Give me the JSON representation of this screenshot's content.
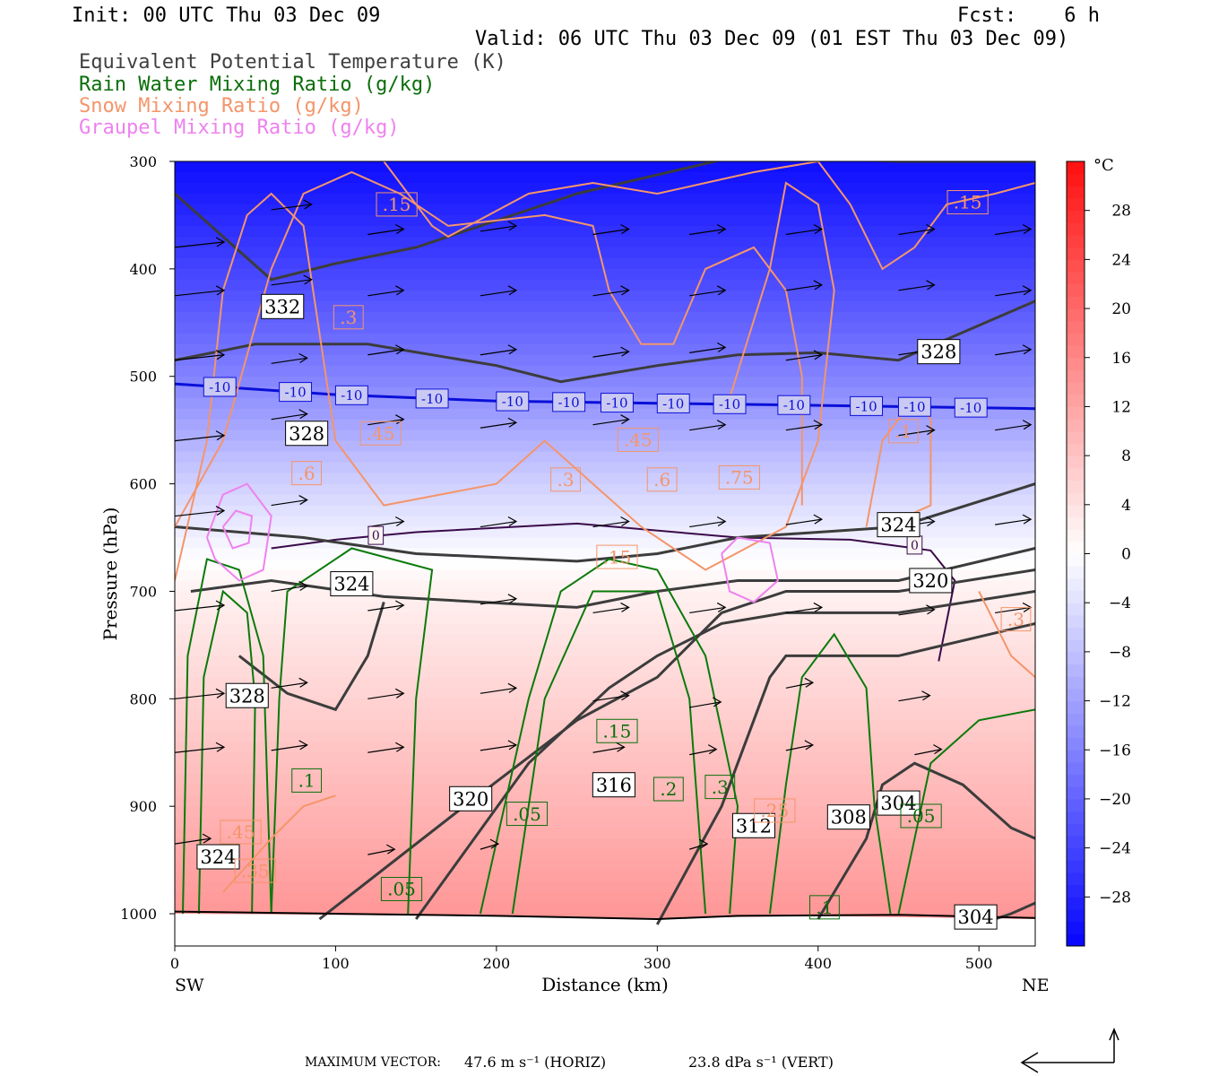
{
  "header": {
    "init": "Init: 00 UTC Thu 03 Dec 09",
    "fcst": "Fcst:    6 h",
    "valid": "Valid: 06 UTC Thu 03 Dec 09 (01 EST Thu 03 Dec 09)"
  },
  "legend": [
    {
      "label": "Equivalent Potential Temperature (K)",
      "color": "#404040"
    },
    {
      "label": "Rain Water Mixing Ratio (g/kg)",
      "color": "#0a6e0a"
    },
    {
      "label": "Snow Mixing Ratio (g/kg)",
      "color": "#f4956a"
    },
    {
      "label": "Graupel Mixing Ratio (g/kg)",
      "color": "#ee82ee"
    }
  ],
  "footer": {
    "max_vector_label": "MAXIMUM VECTOR:",
    "horiz": "47.6 m s⁻¹ (HORIZ)",
    "vert": "23.8 dPa s⁻¹ (VERT)"
  },
  "chart_data": {
    "type": "heatmap",
    "xlabel": "Distance (km)",
    "ylabel": "Pressure (hPa)",
    "x_ticks": [
      0,
      100,
      200,
      300,
      400,
      500
    ],
    "y_ticks": [
      300,
      400,
      500,
      600,
      700,
      800,
      900,
      1000
    ],
    "xlim": [
      0,
      535
    ],
    "ylim": [
      1030,
      300
    ],
    "x_end_labels": {
      "left": "SW",
      "right": "NE"
    },
    "colorbar": {
      "unit": "°C",
      "ticks": [
        28,
        24,
        20,
        16,
        12,
        8,
        4,
        0,
        -4,
        -8,
        -12,
        -16,
        -20,
        -24,
        -28
      ],
      "range": [
        -32,
        32
      ]
    },
    "temperature_profile": [
      {
        "p": 300,
        "t": -31
      },
      {
        "p": 400,
        "t": -24
      },
      {
        "p": 500,
        "t": -16
      },
      {
        "p": 600,
        "t": -6
      },
      {
        "p": 660,
        "t": -1
      },
      {
        "p": 700,
        "t": 2
      },
      {
        "p": 800,
        "t": 6
      },
      {
        "p": 900,
        "t": 10
      },
      {
        "p": 1000,
        "t": 14
      }
    ],
    "isotherm_minus10": {
      "label": "-10",
      "points": [
        [
          0,
          507
        ],
        [
          100,
          517
        ],
        [
          200,
          523
        ],
        [
          300,
          525
        ],
        [
          400,
          527
        ],
        [
          535,
          530
        ]
      ],
      "label_x": [
        28,
        75,
        110,
        160,
        210,
        245,
        275,
        310,
        345,
        385,
        430,
        460,
        495
      ]
    },
    "freezing_level": {
      "label": "0",
      "points": [
        [
          60,
          660
        ],
        [
          100,
          652
        ],
        [
          150,
          645
        ],
        [
          250,
          637
        ],
        [
          350,
          650
        ],
        [
          420,
          652
        ],
        [
          470,
          662
        ],
        [
          485,
          690
        ],
        [
          475,
          765
        ]
      ],
      "label_x": [
        125,
        460
      ]
    },
    "theta_e_labels": [
      {
        "x": 67,
        "p": 435,
        "v": "332"
      },
      {
        "x": 475,
        "p": 477,
        "v": "328"
      },
      {
        "x": 82,
        "p": 553,
        "v": "328"
      },
      {
        "x": 450,
        "p": 638,
        "v": "324"
      },
      {
        "x": 110,
        "p": 693,
        "v": "324"
      },
      {
        "x": 470,
        "p": 690,
        "v": "320"
      },
      {
        "x": 45,
        "p": 797,
        "v": "328"
      },
      {
        "x": 184,
        "p": 893,
        "v": "320"
      },
      {
        "x": 273,
        "p": 880,
        "v": "316"
      },
      {
        "x": 360,
        "p": 918,
        "v": "312"
      },
      {
        "x": 419,
        "p": 910,
        "v": "308"
      },
      {
        "x": 450,
        "p": 897,
        "v": "304"
      },
      {
        "x": 498,
        "p": 1003,
        "v": "304"
      },
      {
        "x": 27,
        "p": 947,
        "v": "324"
      }
    ],
    "snow_labels": [
      {
        "x": 138,
        "p": 340,
        "v": ".15"
      },
      {
        "x": 493,
        "p": 338,
        "v": ".15"
      },
      {
        "x": 108,
        "p": 445,
        "v": ".3"
      },
      {
        "x": 128,
        "p": 553,
        "v": ".45"
      },
      {
        "x": 82,
        "p": 590,
        "v": ".6"
      },
      {
        "x": 243,
        "p": 596,
        "v": ".3"
      },
      {
        "x": 288,
        "p": 559,
        "v": ".45"
      },
      {
        "x": 303,
        "p": 596,
        "v": ".6"
      },
      {
        "x": 351,
        "p": 594,
        "v": ".75"
      },
      {
        "x": 275,
        "p": 668,
        "v": ".15"
      },
      {
        "x": 523,
        "p": 726,
        "v": ".3"
      },
      {
        "x": 41,
        "p": 924,
        "v": ".45"
      },
      {
        "x": 50,
        "p": 960,
        "v": ".35"
      },
      {
        "x": 373,
        "p": 904,
        "v": ".25"
      },
      {
        "x": 453,
        "p": 551,
        "v": ".1"
      }
    ],
    "rain_labels": [
      {
        "x": 82,
        "p": 876,
        "v": ".1"
      },
      {
        "x": 275,
        "p": 830,
        "v": ".15"
      },
      {
        "x": 307,
        "p": 884,
        "v": ".2"
      },
      {
        "x": 339,
        "p": 882,
        "v": ".3"
      },
      {
        "x": 219,
        "p": 907,
        "v": ".05"
      },
      {
        "x": 141,
        "p": 977,
        "v": ".05"
      },
      {
        "x": 404,
        "p": 994,
        "v": ".1"
      },
      {
        "x": 464,
        "p": 909,
        "v": ".05"
      }
    ]
  }
}
